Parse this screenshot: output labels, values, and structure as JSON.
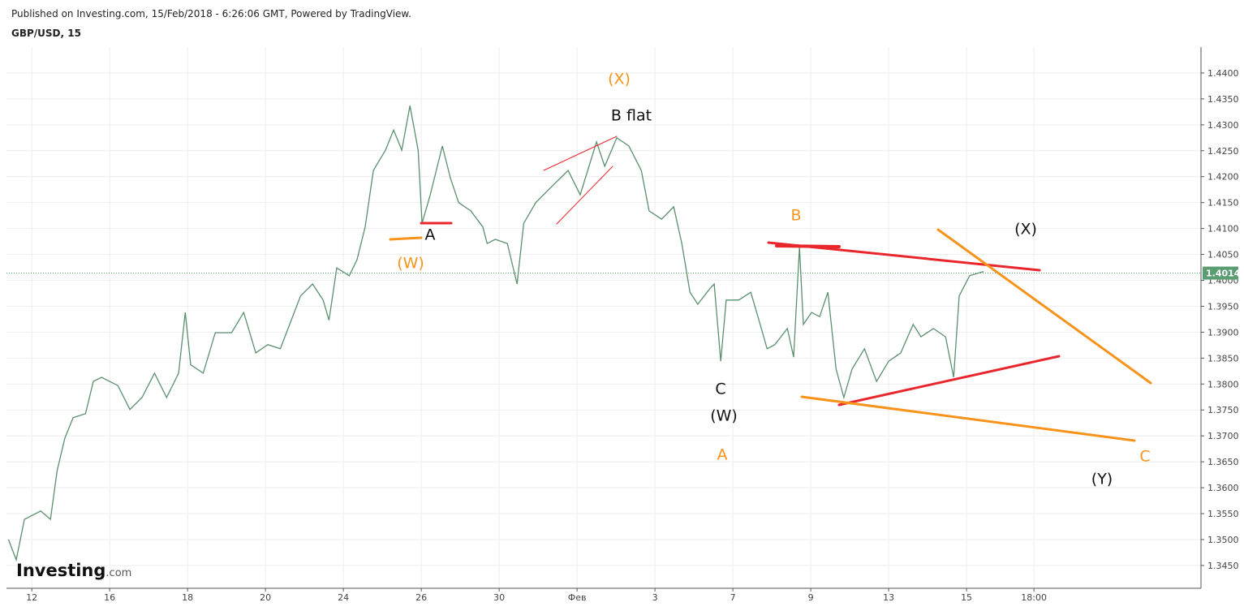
{
  "header": {
    "published": "Published on Investing.com, 15/Feb/2018 - 6:26:06 GMT, Powered by TradingView.",
    "symbol": "GBP/USD, 15"
  },
  "logo": {
    "brand": "Investing",
    "suffix": ".com"
  },
  "chart_data": {
    "type": "line",
    "color": "#5b8f6e",
    "grid": true,
    "xlim": [
      -0.65,
      30.02
    ],
    "ylim": [
      1.3406,
      1.445
    ],
    "xticks": [
      {
        "value": 0,
        "label": "12"
      },
      {
        "value": 2,
        "label": "16"
      },
      {
        "value": 4,
        "label": "18"
      },
      {
        "value": 6,
        "label": "20"
      },
      {
        "value": 8,
        "label": "24"
      },
      {
        "value": 10,
        "label": "26"
      },
      {
        "value": 12,
        "label": "30"
      },
      {
        "value": 14,
        "label": "Фев"
      },
      {
        "value": 16,
        "label": "3"
      },
      {
        "value": 18,
        "label": "7"
      },
      {
        "value": 20,
        "label": "9"
      },
      {
        "value": 22,
        "label": "13"
      },
      {
        "value": 24,
        "label": "15"
      },
      {
        "value": 25.73,
        "label": "18:00"
      }
    ],
    "yticks": [
      {
        "value": 1.345,
        "label": "1.3450"
      },
      {
        "value": 1.35,
        "label": "1.3500"
      },
      {
        "value": 1.355,
        "label": "1.3550"
      },
      {
        "value": 1.36,
        "label": "1.3600"
      },
      {
        "value": 1.365,
        "label": "1.3650"
      },
      {
        "value": 1.37,
        "label": "1.3700"
      },
      {
        "value": 1.375,
        "label": "1.3750"
      },
      {
        "value": 1.38,
        "label": "1.3800"
      },
      {
        "value": 1.385,
        "label": "1.3850"
      },
      {
        "value": 1.39,
        "label": "1.3900"
      },
      {
        "value": 1.395,
        "label": "1.3950"
      },
      {
        "value": 1.4,
        "label": "1.4000"
      },
      {
        "value": 1.405,
        "label": "1.4050"
      },
      {
        "value": 1.41,
        "label": "1.4100"
      },
      {
        "value": 1.415,
        "label": "1.4150"
      },
      {
        "value": 1.42,
        "label": "1.4200"
      },
      {
        "value": 1.425,
        "label": "1.4250"
      },
      {
        "value": 1.43,
        "label": "1.4300"
      },
      {
        "value": 1.435,
        "label": "1.4350"
      },
      {
        "value": 1.44,
        "label": "1.4400"
      }
    ],
    "last_value": 1.4014,
    "x": [
      -0.6,
      -0.4,
      -0.19,
      0.23,
      0.48,
      0.65,
      0.85,
      1.06,
      1.38,
      1.58,
      1.79,
      2.21,
      2.52,
      2.83,
      3.15,
      3.46,
      3.77,
      3.94,
      4.08,
      4.4,
      4.71,
      5.13,
      5.44,
      5.75,
      6.06,
      6.38,
      6.58,
      6.9,
      7.21,
      7.48,
      7.63,
      7.83,
      8.15,
      8.35,
      8.56,
      8.77,
      9.08,
      9.29,
      9.5,
      9.71,
      9.92,
      10.02,
      10.23,
      10.54,
      10.75,
      10.96,
      11.27,
      11.58,
      11.69,
      11.9,
      12.21,
      12.46,
      12.63,
      12.94,
      13.35,
      13.77,
      14.08,
      14.5,
      14.71,
      15.02,
      15.33,
      15.65,
      15.85,
      16.17,
      16.48,
      16.69,
      16.9,
      17.1,
      17.42,
      17.52,
      17.69,
      17.83,
      18.15,
      18.46,
      18.67,
      18.88,
      19.08,
      19.4,
      19.56,
      19.71,
      19.81,
      20.02,
      20.23,
      20.44,
      20.65,
      20.85,
      21.06,
      21.38,
      21.69,
      22.0,
      22.31,
      22.63,
      22.83,
      23.15,
      23.46,
      23.67,
      23.81,
      24.08,
      24.44
    ],
    "values": [
      1.35,
      1.3461,
      1.3539,
      1.3555,
      1.3539,
      1.3633,
      1.3696,
      1.3735,
      1.3743,
      1.3805,
      1.3813,
      1.3797,
      1.3751,
      1.3774,
      1.3821,
      1.3774,
      1.3821,
      1.3938,
      1.3837,
      1.3821,
      1.3899,
      1.3899,
      1.3938,
      1.386,
      1.3876,
      1.3868,
      1.3907,
      1.397,
      1.3993,
      1.3962,
      1.3923,
      1.4024,
      1.4009,
      1.404,
      1.4103,
      1.4212,
      1.4251,
      1.429,
      1.4251,
      1.4337,
      1.4251,
      1.411,
      1.4165,
      1.4259,
      1.4197,
      1.415,
      1.4134,
      1.4103,
      1.4071,
      1.4079,
      1.4071,
      1.3993,
      1.411,
      1.415,
      1.4181,
      1.4212,
      1.4165,
      1.4267,
      1.422,
      1.4275,
      1.4259,
      1.4212,
      1.4134,
      1.4118,
      1.4142,
      1.4071,
      1.3977,
      1.3954,
      1.3985,
      1.3993,
      1.3844,
      1.3962,
      1.3962,
      1.3977,
      1.3923,
      1.3868,
      1.3876,
      1.3907,
      1.3852,
      1.4064,
      1.3915,
      1.3938,
      1.393,
      1.3977,
      1.3829,
      1.3774,
      1.3829,
      1.3868,
      1.3805,
      1.3844,
      1.386,
      1.3915,
      1.3891,
      1.3907,
      1.3891,
      1.3813,
      1.397,
      1.4009,
      1.4017
    ],
    "annotations": [
      "(X)",
      "B flat",
      "A",
      "(W)",
      "B",
      "(X)",
      "C",
      "(W)",
      "A",
      "C",
      "(Y)"
    ]
  }
}
